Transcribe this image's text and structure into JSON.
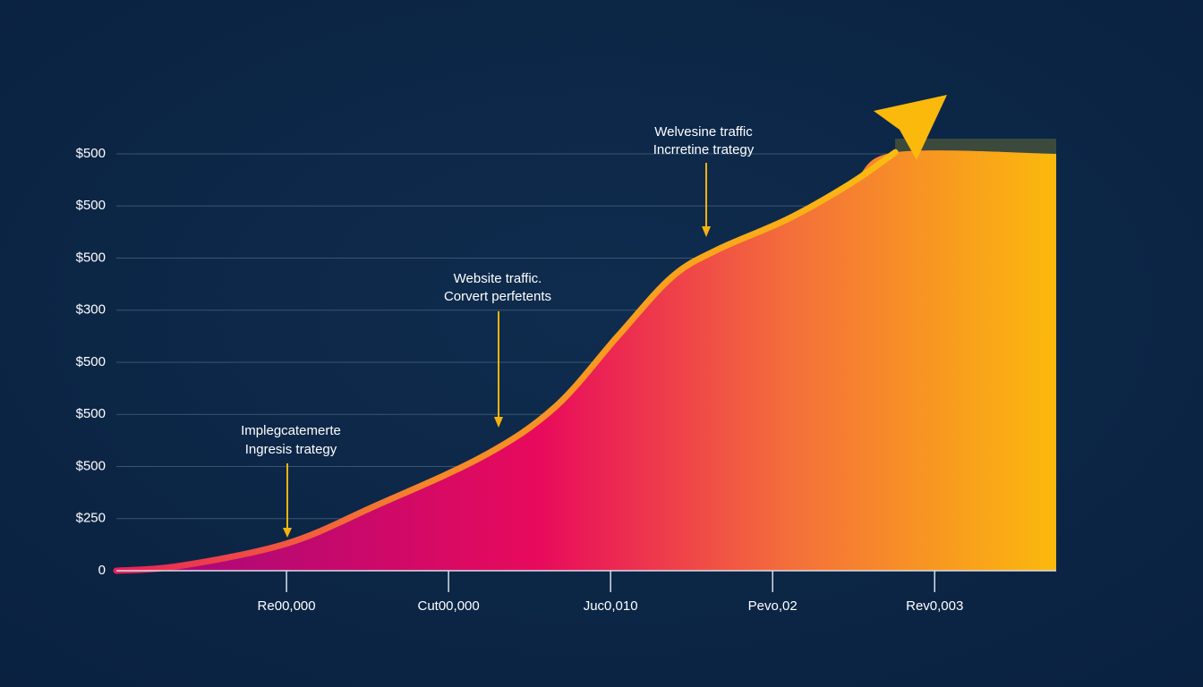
{
  "chart_data": {
    "type": "area",
    "y_labels": [
      "0",
      "$250",
      "$500",
      "$500",
      "$500",
      "$300",
      "$500",
      "$500",
      "$500"
    ],
    "ylim": [
      0,
      8
    ],
    "categories": [
      "Re00,000",
      "Cut00,000",
      "Juc0,010",
      "Pevo,02",
      "Rev0,003"
    ],
    "xlim": [
      -1.05,
      4.75
    ],
    "x": [
      -1.05,
      -0.663,
      0,
      0.552,
      1.215,
      1.657,
      2.044,
      2.376,
      2.652,
      3.094,
      3.48,
      3.757,
      4.75
    ],
    "values": [
      0,
      0.09,
      0.52,
      1.25,
      2.2,
      3.14,
      4.5,
      5.63,
      6.15,
      6.75,
      7.43,
      8.03,
      8.0
    ],
    "line_color": "#f9b215",
    "grid": true,
    "annotations": [
      {
        "lines": [
          "Implegcatemerte",
          "Ingresis trategy"
        ]
      },
      {
        "lines": [
          "Website traffic.",
          "Corvert perfetents"
        ]
      },
      {
        "lines": [
          "Welvesine traffic",
          "Incrretine trategy"
        ]
      }
    ]
  }
}
